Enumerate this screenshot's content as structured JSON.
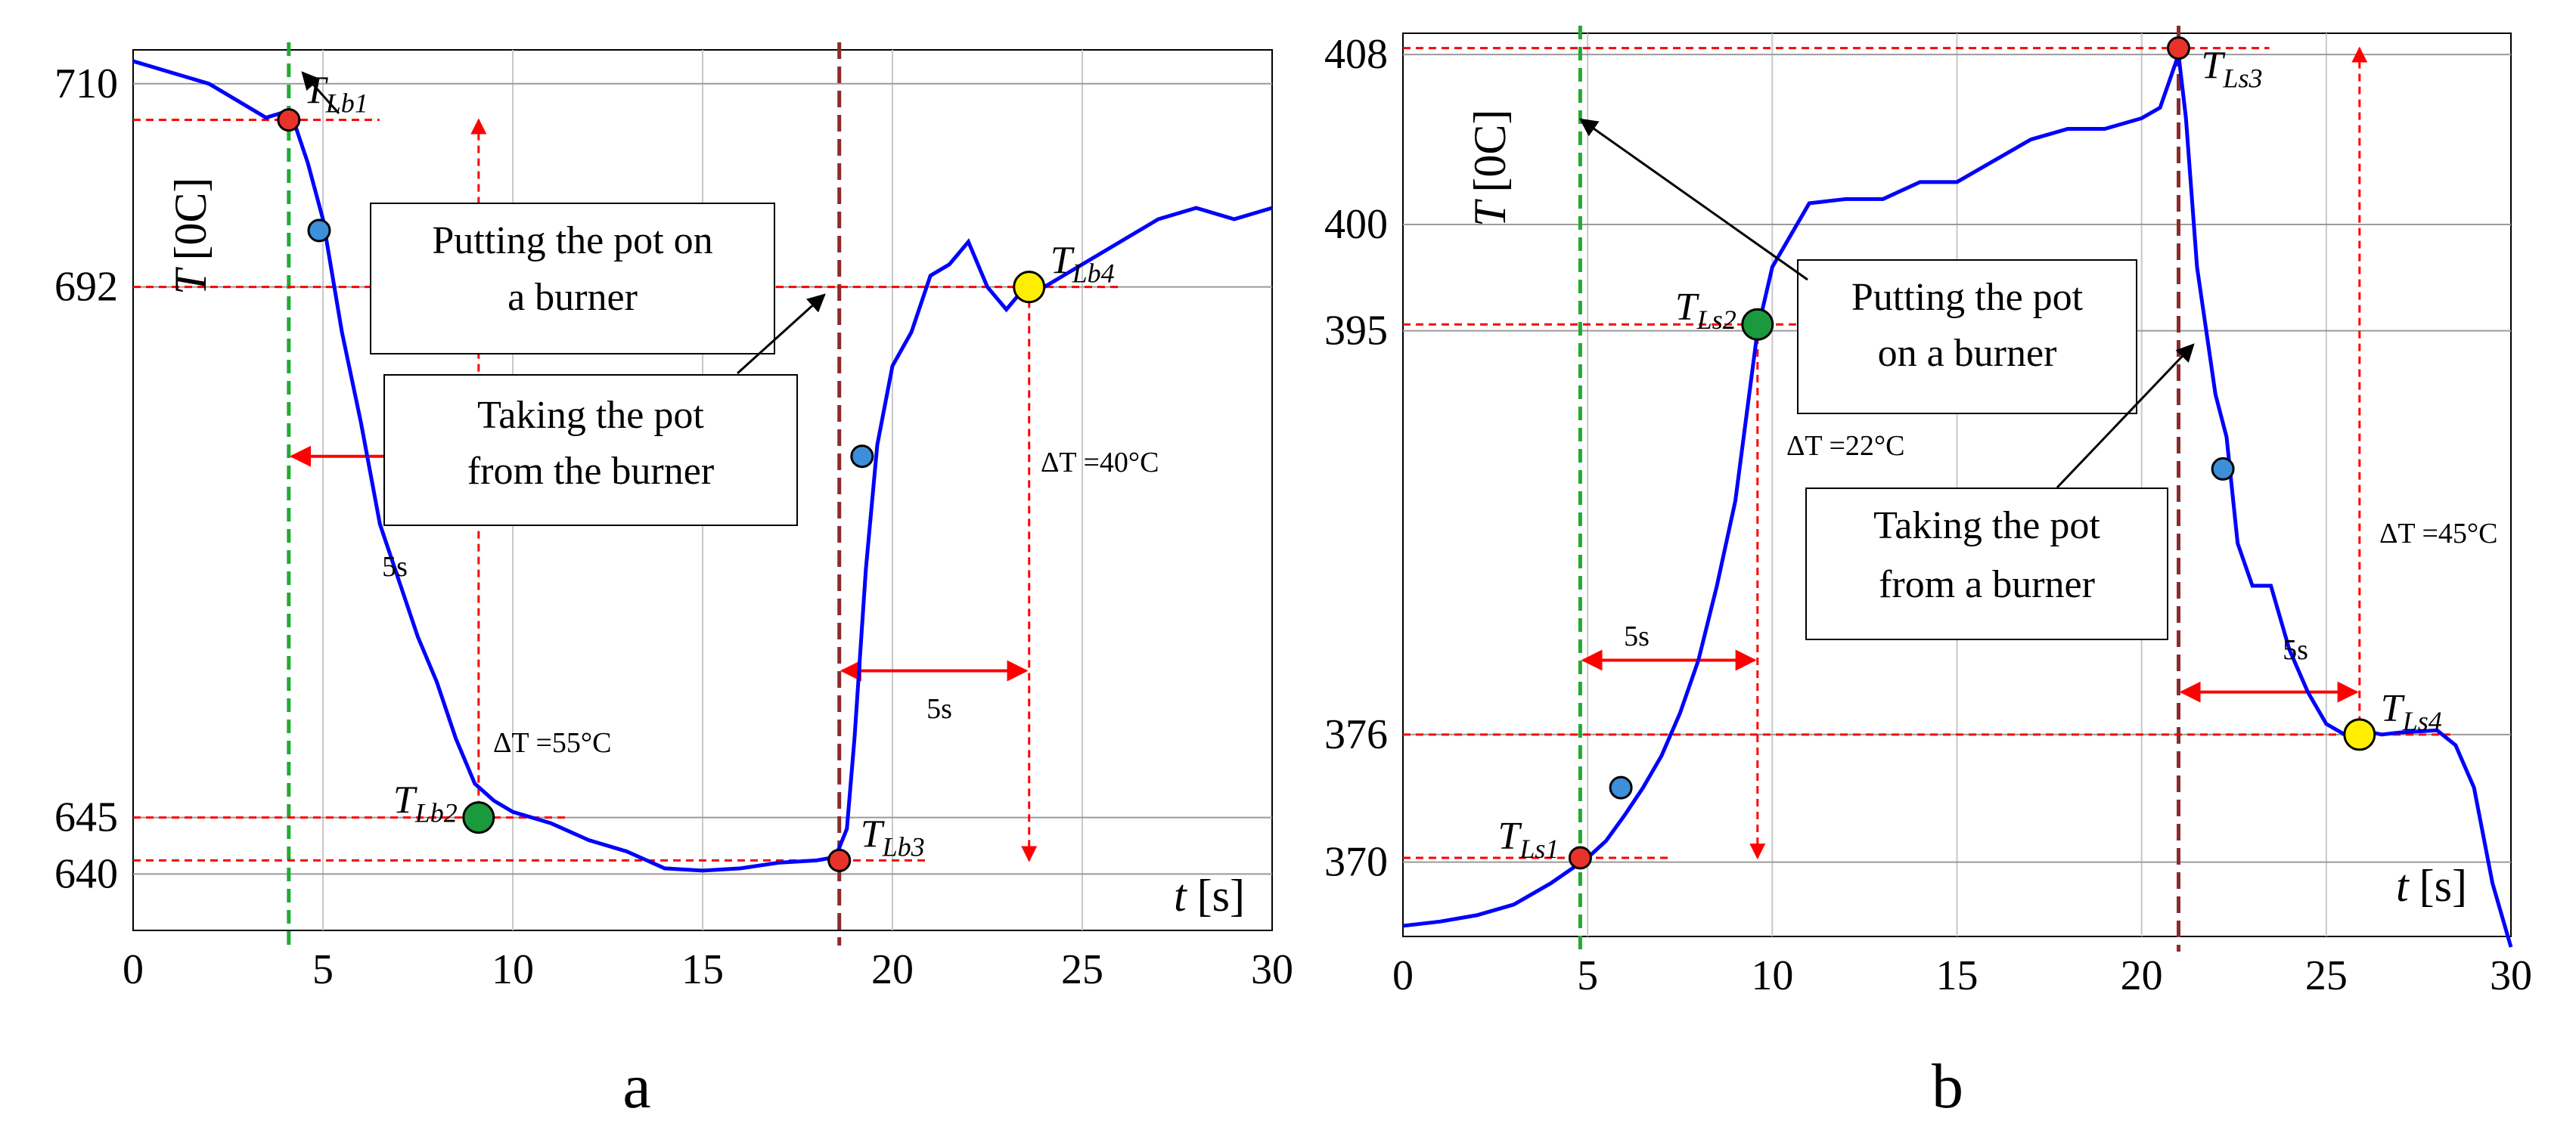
{
  "chart_data": [
    {
      "type": "line",
      "panel_label": "a",
      "xlabel_var": "t",
      "xlabel_unit": "[s]",
      "ylabel_var": "T",
      "ylabel_unit": "[0C]",
      "xlim": [
        0,
        30
      ],
      "ylim": [
        635,
        713
      ],
      "xticks": [
        "0",
        "5",
        "10",
        "15",
        "20",
        "25",
        "30"
      ],
      "yticks": [
        {
          "value": 710,
          "label": "710"
        },
        {
          "value": 692,
          "label": "692"
        },
        {
          "value": 645,
          "label": "645"
        },
        {
          "value": 640,
          "label": "640"
        }
      ],
      "series": [
        {
          "name": "temperature",
          "color": "#0000ff",
          "x": [
            0,
            0.5,
            1,
            2,
            3,
            3.5,
            4,
            4.2,
            4.6,
            5,
            5.5,
            6,
            6.5,
            7,
            7.5,
            8,
            8.5,
            9,
            9.5,
            10,
            11,
            12,
            13,
            14,
            15,
            16,
            17,
            18,
            18.5,
            18.8,
            19,
            19.3,
            19.6,
            20,
            20.5,
            21,
            21.5,
            22,
            22.5,
            23,
            23.5,
            24,
            25,
            26,
            27,
            28,
            29,
            30
          ],
          "y": [
            712,
            711.5,
            711,
            710,
            708,
            707,
            707.5,
            707,
            703,
            698,
            688,
            680,
            671,
            666,
            661,
            657,
            652,
            648,
            646.5,
            645.5,
            644.5,
            643,
            642,
            640.5,
            640.3,
            640.5,
            641,
            641.2,
            641.5,
            644,
            652,
            667,
            678,
            685,
            688,
            693,
            694,
            696,
            692,
            690,
            692,
            692,
            694,
            696,
            698,
            699,
            698,
            699
          ]
        }
      ],
      "markers": [
        {
          "label_main": "T",
          "label_sub": "Lb1",
          "x": 4.1,
          "y": 706.8,
          "color": "#e8332a"
        },
        {
          "label_main": "",
          "label_sub": "",
          "x": 4.9,
          "y": 697,
          "color": "#3c8fd8"
        },
        {
          "label_main": "T",
          "label_sub": "Lb2",
          "x": 9.1,
          "y": 645,
          "color": "#1a9a3c"
        },
        {
          "label_main": "T",
          "label_sub": "Lb3",
          "x": 18.6,
          "y": 641.2,
          "color": "#e8332a"
        },
        {
          "label_main": "",
          "label_sub": "",
          "x": 19.2,
          "y": 677,
          "color": "#3c8fd8"
        },
        {
          "label_main": "T",
          "label_sub": "Lb4",
          "x": 23.6,
          "y": 692,
          "color": "#ffee00"
        }
      ],
      "annotations": {
        "box1": [
          "Putting the pot on",
          "a burner"
        ],
        "box2": [
          "Taking the pot",
          "from the burner"
        ],
        "interval1": "5s",
        "interval2": "5s",
        "delta1": "ΔT =55°C",
        "delta2": "ΔT =40°C"
      }
    },
    {
      "type": "line",
      "panel_label": "b",
      "xlabel_var": "t",
      "xlabel_unit": "[s]",
      "ylabel_var": "T",
      "ylabel_unit": "[0C]",
      "xlim": [
        0,
        30
      ],
      "ylim": [
        366.5,
        409
      ],
      "xticks": [
        "0",
        "5",
        "10",
        "15",
        "20",
        "25",
        "30"
      ],
      "yticks": [
        {
          "value": 408,
          "label": "408"
        },
        {
          "value": 400,
          "label": "400"
        },
        {
          "value": 395,
          "label": "395"
        },
        {
          "value": 376,
          "label": "376"
        },
        {
          "value": 370,
          "label": "370"
        }
      ],
      "series": [
        {
          "name": "temperature",
          "color": "#0000ff",
          "x": [
            0,
            1,
            2,
            3,
            4,
            4.5,
            5,
            5.5,
            6,
            6.5,
            7,
            7.5,
            8,
            8.5,
            9,
            9.3,
            9.6,
            10,
            10.5,
            11,
            12,
            13,
            14,
            15,
            16,
            17,
            18,
            19,
            20,
            20.5,
            21,
            21.2,
            21.5,
            22,
            22.3,
            22.6,
            23,
            23.5,
            24,
            24.5,
            25,
            25.5,
            26,
            26.5,
            27,
            28,
            28.5,
            29,
            29.5,
            30
          ],
          "y": [
            367,
            367.2,
            367.5,
            368,
            369,
            369.6,
            370.2,
            371,
            372.2,
            373.5,
            375,
            377,
            379.5,
            383,
            387,
            391,
            395,
            398,
            399.5,
            401,
            401.2,
            401.2,
            402,
            402,
            403,
            404,
            404.5,
            404.5,
            405,
            405.5,
            408,
            405,
            398,
            392,
            390,
            385,
            383,
            383,
            380,
            378,
            376.5,
            376,
            376.2,
            376,
            376.1,
            376.2,
            375.5,
            373.5,
            369,
            366
          ]
        }
      ],
      "markers": [
        {
          "label_main": "T",
          "label_sub": "Ls1",
          "x": 4.8,
          "y": 370.2,
          "color": "#e8332a"
        },
        {
          "label_main": "",
          "label_sub": "",
          "x": 5.9,
          "y": 373.5,
          "color": "#3c8fd8"
        },
        {
          "label_main": "T",
          "label_sub": "Ls2",
          "x": 9.6,
          "y": 395.3,
          "color": "#1a9a3c"
        },
        {
          "label_main": "T",
          "label_sub": "Ls3",
          "x": 21.0,
          "y": 408.3,
          "color": "#e8332a"
        },
        {
          "label_main": "",
          "label_sub": "",
          "x": 22.2,
          "y": 388.5,
          "color": "#3c8fd8"
        },
        {
          "label_main": "T",
          "label_sub": "Ls4",
          "x": 25.9,
          "y": 376,
          "color": "#ffee00"
        }
      ],
      "annotations": {
        "box1": [
          "Putting the pot",
          "on a burner"
        ],
        "box2": [
          "Taking the pot",
          "from a burner"
        ],
        "interval1": "5s",
        "interval2": "5s",
        "delta1": "ΔT =22°C",
        "delta2": "ΔT =45°C"
      }
    }
  ]
}
